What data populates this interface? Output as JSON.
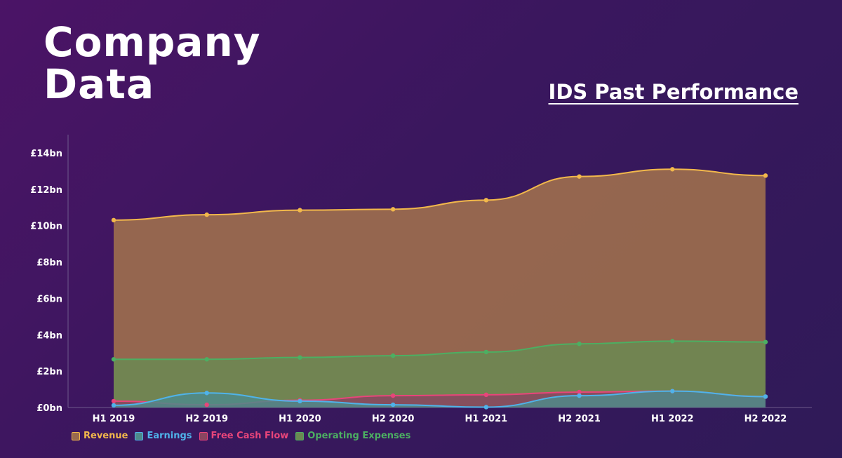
{
  "page": {
    "title_line1": "Company",
    "title_line2": "Data",
    "subtitle": "IDS Past Performance"
  },
  "chart_data": {
    "type": "area",
    "categories": [
      "H1 2019",
      "H2 2019",
      "H1 2020",
      "H2 2020",
      "H1 2021",
      "H2 2021",
      "H1 2022",
      "H2 2022"
    ],
    "ylim": [
      0,
      15
    ],
    "y_ticks": [
      0,
      2,
      4,
      6,
      8,
      10,
      12,
      14
    ],
    "y_tick_labels": [
      "£0bn",
      "£2bn",
      "£4bn",
      "£6bn",
      "£8bn",
      "£10bn",
      "£12bn",
      "£14bn"
    ],
    "unit": "£bn",
    "grid": false,
    "legend_position": "bottom-left",
    "series": [
      {
        "name": "Revenue",
        "color": "#f2b84b",
        "fill": "#9a6a4e",
        "values": [
          10.3,
          10.6,
          10.85,
          10.9,
          11.4,
          12.7,
          13.1,
          12.75
        ]
      },
      {
        "name": "Earnings",
        "color": "#4fb3ea",
        "fill": "#4f8a8a",
        "values": [
          0.12,
          0.8,
          0.35,
          0.15,
          0.02,
          0.65,
          0.9,
          0.6
        ]
      },
      {
        "name": "Free Cash Flow",
        "color": "#e8457a",
        "fill": "#8a4560",
        "values": [
          0.35,
          0.15,
          0.4,
          0.65,
          0.7,
          0.85,
          0.9,
          0.6
        ]
      },
      {
        "name": "Operating Expenses",
        "color": "#4caf62",
        "fill": "#6b8a52",
        "values": [
          2.65,
          2.65,
          2.75,
          2.85,
          3.05,
          3.5,
          3.65,
          3.6
        ]
      }
    ]
  }
}
